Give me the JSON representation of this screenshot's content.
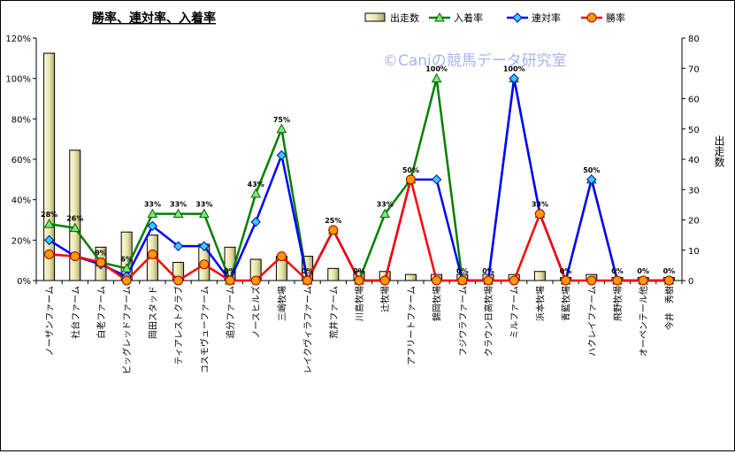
{
  "chart_data": {
    "type": "bar+line",
    "title": "勝率、連対率、入着率",
    "watermark": "©Caniの競馬データ研究室",
    "y2label": "出走数",
    "ylim": [
      0,
      120
    ],
    "y2lim": [
      0,
      80
    ],
    "yticks": [
      "0%",
      "20%",
      "40%",
      "60%",
      "80%",
      "100%",
      "120%"
    ],
    "y2ticks": [
      "0",
      "10",
      "20",
      "30",
      "40",
      "50",
      "60",
      "70",
      "80"
    ],
    "legend_position": "top",
    "categories": [
      "ノーザンファーム",
      "社台ファーム",
      "白老ファーム",
      "ビッグレッドファーム",
      "岡田スタッド",
      "ティアレストクラブ",
      "コスモヴューファーム",
      "追分ファーム",
      "ノースヒルズ",
      "三嶋牧場",
      "レイクヴィラファーム",
      "荒井ファーム",
      "川島牧場",
      "辻牧場",
      "アフリートファーム",
      "錦岡牧場",
      "フジワラファーム",
      "クラウン日高牧場",
      "ミルファーム",
      "浜本牧場",
      "青藍牧場",
      "ハクレイファーム",
      "飛野牧場",
      "オーペンテール他",
      "今井　秀樹"
    ],
    "series": [
      {
        "name": "出走数",
        "kind": "bar",
        "axis": "right",
        "color": "#e8e4a8",
        "values": [
          75,
          43,
          11,
          16,
          15,
          6,
          12,
          11,
          7,
          8,
          8,
          4,
          3,
          3,
          2,
          2,
          2,
          2,
          2,
          3,
          1,
          2,
          1,
          1,
          1
        ]
      },
      {
        "name": "入着率",
        "kind": "line",
        "axis": "left",
        "color": "#008000",
        "marker": "triangle",
        "values": [
          28,
          26,
          9,
          6,
          33,
          33,
          33,
          0,
          43,
          75,
          0,
          25,
          0,
          33,
          50,
          100,
          0,
          0,
          100,
          33,
          0,
          50,
          0,
          0,
          0
        ]
      },
      {
        "name": "連対率",
        "kind": "line",
        "axis": "left",
        "color": "#0000ff",
        "marker": "diamond",
        "values": [
          20,
          12,
          8,
          2,
          27,
          17,
          17,
          0,
          29,
          62,
          0,
          25,
          0,
          0,
          50,
          50,
          0,
          0,
          100,
          33,
          0,
          50,
          0,
          0,
          0
        ]
      },
      {
        "name": "勝率",
        "kind": "line",
        "axis": "left",
        "color": "#ff0000",
        "marker": "circle",
        "values": [
          13,
          12,
          9,
          0,
          13,
          0,
          8,
          0,
          0,
          12,
          0,
          25,
          0,
          0,
          50,
          0,
          0,
          0,
          0,
          33,
          0,
          0,
          0,
          0,
          0
        ]
      }
    ],
    "data_labels": [
      "28%",
      "26%",
      "9%",
      "6%",
      "33%",
      "33%",
      "33%",
      "0%",
      "43%",
      "75%",
      "0%",
      "25%",
      "0%",
      "33%",
      "50%",
      "100%",
      "0%",
      "0%",
      "100%",
      "33%",
      "0%",
      "50%",
      "0%",
      "0%",
      "0%"
    ],
    "grid": false
  }
}
